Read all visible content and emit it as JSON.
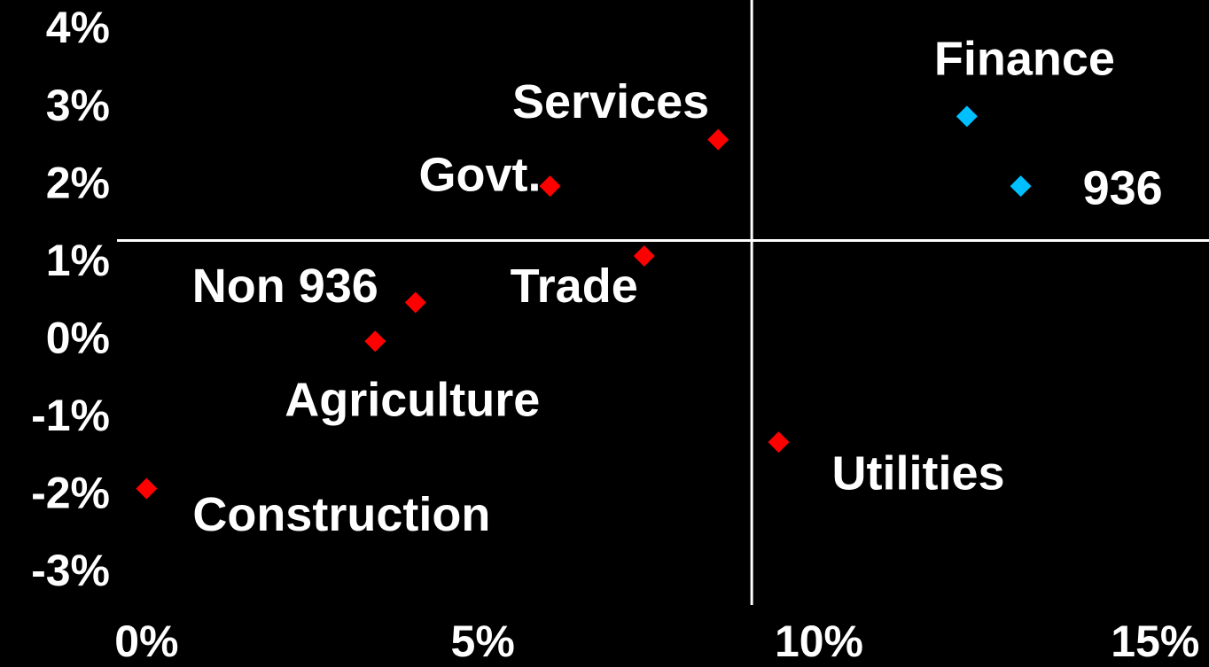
{
  "chart_data": {
    "type": "scatter",
    "points": [
      {
        "label": "Services",
        "x": 8.5,
        "y": 2.6,
        "color": "#ff0000"
      },
      {
        "label": "Govt.",
        "x": 6.0,
        "y": 2.0,
        "color": "#ff0000"
      },
      {
        "label": "Trade",
        "x": 7.4,
        "y": 1.1,
        "color": "#ff0000"
      },
      {
        "label": "Non 936",
        "x": 4.0,
        "y": 0.5,
        "color": "#ff0000"
      },
      {
        "label": "Agriculture",
        "x": 3.4,
        "y": 0.0,
        "color": "#ff0000"
      },
      {
        "label": "Construction",
        "x": 0.0,
        "y": -1.9,
        "color": "#ff0000"
      },
      {
        "label": "Utilities",
        "x": 9.4,
        "y": -1.3,
        "color": "#ff0000"
      },
      {
        "label": "Finance",
        "x": 12.2,
        "y": 2.9,
        "color": "#00bfff"
      },
      {
        "label": "936",
        "x": 13.0,
        "y": 2.0,
        "color": "#00bfff"
      }
    ],
    "xlim": [
      -0.4,
      15.8
    ],
    "ylim": [
      -3.4,
      4.4
    ],
    "xticks": [
      {
        "value": 0,
        "label": "0%"
      },
      {
        "value": 5,
        "label": "5%"
      },
      {
        "value": 10,
        "label": "10%"
      },
      {
        "value": 15,
        "label": "15%"
      }
    ],
    "yticks": [
      {
        "value": 4,
        "label": "4%"
      },
      {
        "value": 3,
        "label": "3%"
      },
      {
        "value": 2,
        "label": "2%"
      },
      {
        "value": 1,
        "label": "1%"
      },
      {
        "value": 0,
        "label": "0%"
      },
      {
        "value": -1,
        "label": "-1%"
      },
      {
        "value": -2,
        "label": "-2%"
      },
      {
        "value": -3,
        "label": "-3%"
      }
    ],
    "reference_lines": {
      "x": 9.0,
      "y": 1.3
    }
  }
}
